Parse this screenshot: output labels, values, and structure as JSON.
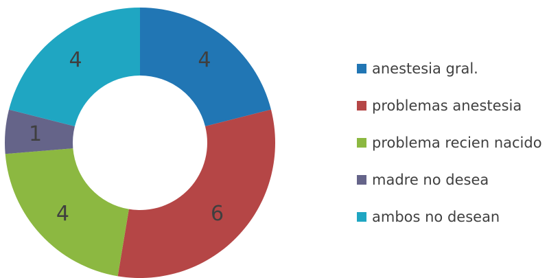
{
  "chart_data": {
    "type": "pie",
    "variant": "doughnut",
    "categories": [
      "anestesia gral.",
      "problemas anestesia",
      "problema recien nacido",
      "madre no desea",
      "ambos no desean"
    ],
    "values": [
      4,
      6,
      4,
      1,
      4
    ],
    "colors": [
      "#2176b4",
      "#b54646",
      "#8cb841",
      "#656489",
      "#1fa6c2"
    ],
    "start": "top",
    "direction": "clockwise",
    "legend_position": "right",
    "title": ""
  }
}
